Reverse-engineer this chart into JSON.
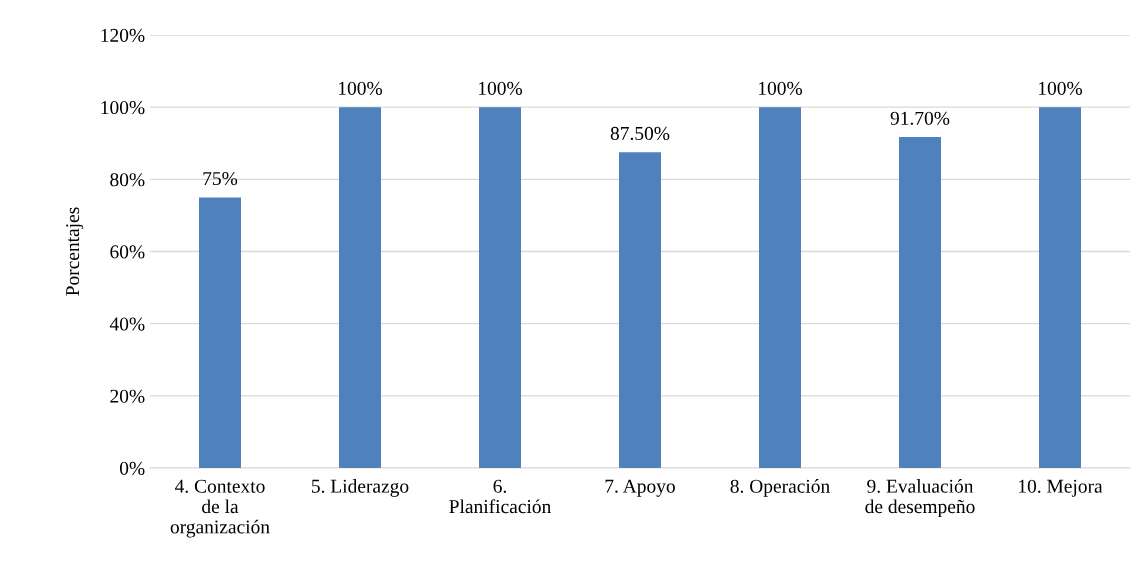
{
  "chart_data": {
    "type": "bar",
    "ylabel": "Porcentajes",
    "categories": [
      "4. Contexto\nde la\norganización",
      "5. Liderazgo",
      "6.\nPlanificación",
      "7. Apoyo",
      "8. Operación",
      "9. Evaluación\nde desempeño",
      "10. Mejora"
    ],
    "series": [
      {
        "color": "#4f81bd",
        "values": [
          75,
          100,
          100,
          87.5,
          100,
          91.7,
          100
        ]
      }
    ],
    "value_labels": [
      "75%",
      "100%",
      "100%",
      "87.50%",
      "100%",
      "91.70%",
      "100%"
    ],
    "ylim": [
      0,
      120
    ],
    "yticks": [
      {
        "value": 0,
        "label": "0%"
      },
      {
        "value": 20,
        "label": "20%"
      },
      {
        "value": 40,
        "label": "40%"
      },
      {
        "value": 60,
        "label": "60%"
      },
      {
        "value": 80,
        "label": "80%"
      },
      {
        "value": 100,
        "label": "100%"
      },
      {
        "value": 120,
        "label": "120%"
      }
    ],
    "grid": "y",
    "legend": false
  }
}
